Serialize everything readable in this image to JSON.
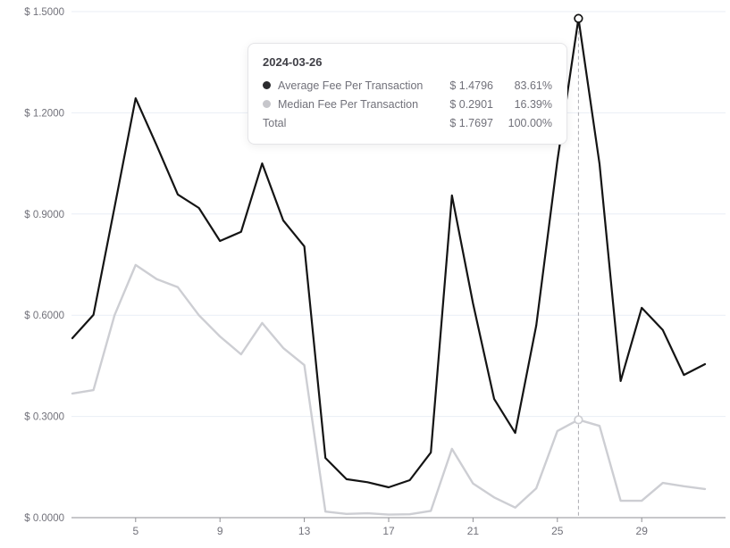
{
  "tooltip": {
    "date": "2024-03-26",
    "rows": [
      {
        "label": "Average Fee Per Transaction",
        "value": "$ 1.4796",
        "pct": "83.61%",
        "dot_color": "#2b2b2e"
      },
      {
        "label": "Median Fee Per Transaction",
        "value": "$ 0.2901",
        "pct": "16.39%",
        "dot_color": "#c6c6cb"
      }
    ],
    "total": {
      "label": "Total",
      "value": "$ 1.7697",
      "pct": "100.00%"
    }
  },
  "chart_data": {
    "type": "line",
    "title": "",
    "xlabel": "",
    "ylabel": "",
    "ylim": [
      0,
      1.5
    ],
    "grid": "horizontal",
    "legend_position": "none",
    "x": [
      "2024-03-02",
      "2024-03-03",
      "2024-03-04",
      "2024-03-05",
      "2024-03-06",
      "2024-03-07",
      "2024-03-08",
      "2024-03-09",
      "2024-03-10",
      "2024-03-11",
      "2024-03-12",
      "2024-03-13",
      "2024-03-14",
      "2024-03-15",
      "2024-03-16",
      "2024-03-17",
      "2024-03-18",
      "2024-03-19",
      "2024-03-20",
      "2024-03-21",
      "2024-03-22",
      "2024-03-23",
      "2024-03-24",
      "2024-03-25",
      "2024-03-26",
      "2024-03-27",
      "2024-03-28",
      "2024-03-29",
      "2024-03-30",
      "2024-03-31",
      "2024-04-01"
    ],
    "series": [
      {
        "name": "Average Fee Per Transaction",
        "color": "#141414",
        "values": [
          0.532,
          0.601,
          0.92,
          1.243,
          1.103,
          0.958,
          0.918,
          0.82,
          0.847,
          1.05,
          0.881,
          0.804,
          0.177,
          0.114,
          0.105,
          0.09,
          0.111,
          0.193,
          0.955,
          0.635,
          0.352,
          0.251,
          0.57,
          1.058,
          1.4796,
          1.048,
          0.405,
          0.622,
          0.556,
          0.423,
          0.455
        ]
      },
      {
        "name": "Median Fee Per Transaction",
        "color": "#cdced3",
        "values": [
          0.368,
          0.378,
          0.6,
          0.749,
          0.707,
          0.683,
          0.6,
          0.537,
          0.484,
          0.577,
          0.503,
          0.452,
          0.018,
          0.011,
          0.013,
          0.009,
          0.01,
          0.02,
          0.204,
          0.101,
          0.06,
          0.03,
          0.087,
          0.257,
          0.2901,
          0.272,
          0.05,
          0.05,
          0.103,
          0.093,
          0.085
        ]
      }
    ],
    "y_ticks": [
      {
        "value": 1.5,
        "label": "$ 1.5000"
      },
      {
        "value": 1.2,
        "label": "$ 1.2000"
      },
      {
        "value": 0.9,
        "label": "$ 0.9000"
      },
      {
        "value": 0.6,
        "label": "$ 0.6000"
      },
      {
        "value": 0.3,
        "label": "$ 0.3000"
      },
      {
        "value": 0.0,
        "label": "$ 0.0000"
      }
    ],
    "x_ticks": [
      {
        "index": 3,
        "label": "5"
      },
      {
        "index": 7,
        "label": "9"
      },
      {
        "index": 11,
        "label": "13"
      },
      {
        "index": 15,
        "label": "17"
      },
      {
        "index": 19,
        "label": "21"
      },
      {
        "index": 23,
        "label": "25"
      },
      {
        "index": 27,
        "label": "29"
      }
    ],
    "highlight": {
      "index": 24,
      "date": "2024-03-26"
    }
  },
  "colors": {
    "background": "#ffffff",
    "grid_line": "#e9eef5",
    "axis_line": "#8f8f94",
    "tick_label": "#71717a",
    "dashed_guide": "#ababb0",
    "marker_fill": "#ffffff"
  }
}
